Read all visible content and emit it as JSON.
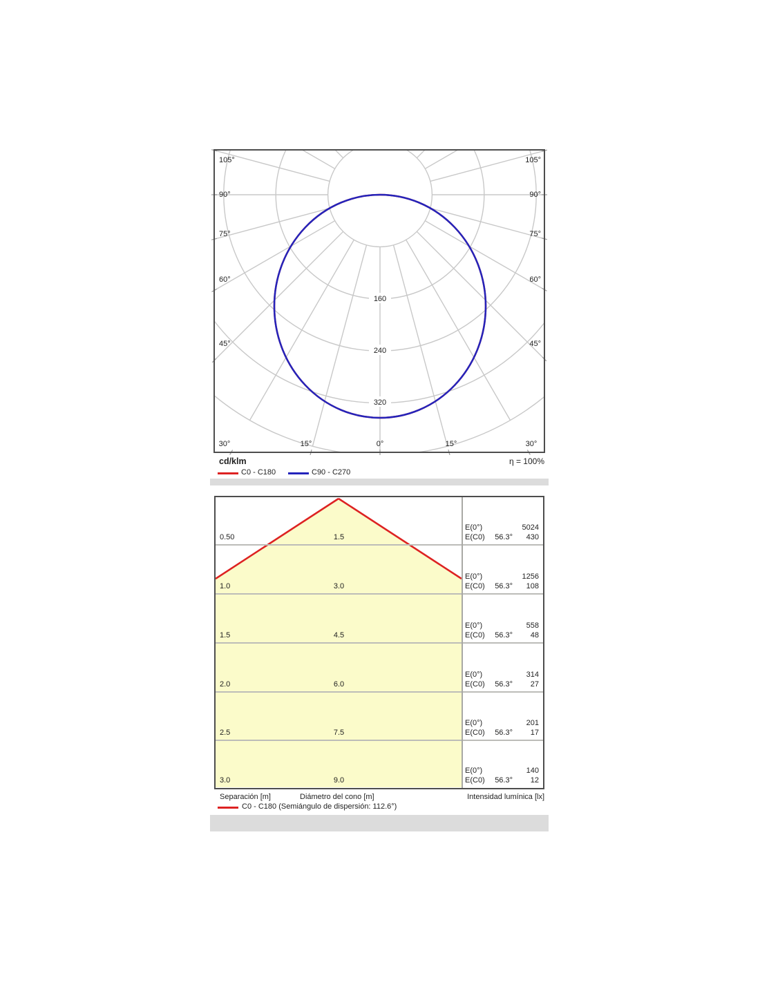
{
  "polar_chart": {
    "unit_label": "cd/klm",
    "efficiency_label": "η = 100%",
    "legend": [
      {
        "label": "C0 - C180",
        "color": "#dd2222"
      },
      {
        "label": "C90 - C270",
        "color": "#2424bb"
      }
    ],
    "side_angle_labels_top_to_bottom": [
      "105°",
      "90°",
      "75°",
      "60°",
      "45°"
    ],
    "bottom_angle_labels": [
      "30°",
      "15°",
      "0°",
      "15°",
      "30°"
    ],
    "ring_labels": [
      {
        "value": 160,
        "label": "160"
      },
      {
        "value": 240,
        "label": "240"
      },
      {
        "value": 320,
        "label": "320"
      }
    ],
    "grid_color": "#c8c8c8",
    "border_color": "#4d4d4d"
  },
  "cone_chart": {
    "e0_label": "E(0°)",
    "ec0_label": "E(C0)",
    "beam_half_angle": "56.3°",
    "rows": [
      {
        "separation": "0.50",
        "diameter": "1.5",
        "e0": "5024",
        "ec0": "430"
      },
      {
        "separation": "1.0",
        "diameter": "3.0",
        "e0": "1256",
        "ec0": "108"
      },
      {
        "separation": "1.5",
        "diameter": "4.5",
        "e0": "558",
        "ec0": "48"
      },
      {
        "separation": "2.0",
        "diameter": "6.0",
        "e0": "314",
        "ec0": "27"
      },
      {
        "separation": "2.5",
        "diameter": "7.5",
        "e0": "201",
        "ec0": "17"
      },
      {
        "separation": "3.0",
        "diameter": "9.0",
        "e0": "140",
        "ec0": "12"
      }
    ],
    "footer": {
      "separation": "Separación [m]",
      "diameter": "Diámetro del cono [m]",
      "intensity": "Intensidad lumínica [lx]"
    },
    "legend_label": "C0 - C180 (Semiángulo de dispersión: 112.6°)",
    "cone_fill": "#fbfbca",
    "cone_line_color": "#dd2222"
  },
  "chart_data": [
    {
      "type": "line",
      "subtype": "polar-luminous-intensity",
      "title": "Luminous intensity distribution (polar)",
      "unit": "cd/klm",
      "efficiency": "η = 100%",
      "angle_ticks_deg": [
        0,
        15,
        30,
        45,
        60,
        75,
        90,
        105
      ],
      "radial_ticks": [
        80,
        160,
        240,
        320,
        400
      ],
      "radial_tick_labels_shown": [
        160,
        240,
        320
      ],
      "legend_position": "bottom-left",
      "series": [
        {
          "name": "C0 - C180",
          "color": "#dd2222",
          "angles_deg": [
            0,
            15,
            30,
            45,
            60,
            75,
            90
          ],
          "values_cd_per_klm": [
            344,
            332,
            298,
            243,
            172,
            89,
            0
          ]
        },
        {
          "name": "C90 - C270",
          "color": "#2424bb",
          "angles_deg": [
            0,
            15,
            30,
            45,
            60,
            75,
            90
          ],
          "values_cd_per_klm": [
            344,
            332,
            298,
            243,
            172,
            89,
            0
          ]
        }
      ]
    },
    {
      "type": "table",
      "title": "Cone diagram (beam spread)",
      "beam_half_angle_deg": 56.3,
      "columns": [
        "Separación [m]",
        "Diámetro del cono [m]",
        "E(0°) [lx]",
        "E(C0) [lx]"
      ],
      "rows": [
        {
          "separation_m": 0.5,
          "cone_diameter_m": 1.5,
          "E0_lx": 5024,
          "EC0_lx": 430
        },
        {
          "separation_m": 1.0,
          "cone_diameter_m": 3.0,
          "E0_lx": 1256,
          "EC0_lx": 108
        },
        {
          "separation_m": 1.5,
          "cone_diameter_m": 4.5,
          "E0_lx": 558,
          "EC0_lx": 48
        },
        {
          "separation_m": 2.0,
          "cone_diameter_m": 6.0,
          "E0_lx": 314,
          "EC0_lx": 27
        },
        {
          "separation_m": 2.5,
          "cone_diameter_m": 7.5,
          "E0_lx": 201,
          "EC0_lx": 17
        },
        {
          "separation_m": 3.0,
          "cone_diameter_m": 9.0,
          "E0_lx": 140,
          "EC0_lx": 12
        }
      ],
      "legend": "C0 - C180 (Semiángulo de dispersión: 112.6°)"
    }
  ]
}
